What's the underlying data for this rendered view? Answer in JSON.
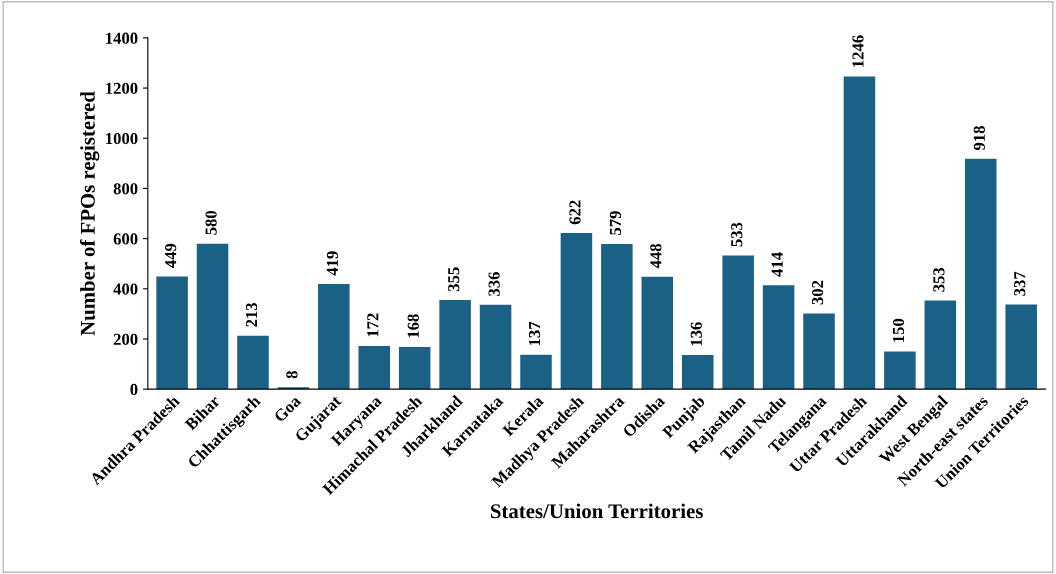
{
  "chart_data": {
    "type": "bar",
    "categories": [
      "Andhra Pradesh",
      "Bihar",
      "Chhattisgarh",
      "Goa",
      "Gujarat",
      "Haryana",
      "Himachal Pradesh",
      "Jharkhand",
      "Karnataka",
      "Kerala",
      "Madhya Pradesh",
      "Maharashtra",
      "Odisha",
      "Punjab",
      "Rajasthan",
      "Tamil Nadu",
      "Telangana",
      "Uttar Pradesh",
      "Uttarakhand",
      "West Bengal",
      "North-east states",
      "Union Territories"
    ],
    "values": [
      449,
      580,
      213,
      8,
      419,
      172,
      168,
      355,
      336,
      137,
      622,
      579,
      448,
      136,
      533,
      414,
      302,
      1246,
      150,
      353,
      918,
      337
    ],
    "color": "#1b6185",
    "xlabel": "States/Union Territories",
    "ylabel": "Number of FPOs registered",
    "ylim": [
      0,
      1400
    ],
    "yticks": [
      0,
      200,
      400,
      600,
      800,
      1000,
      1200,
      1400
    ],
    "data_labels": true,
    "grid": false,
    "legend": false
  }
}
